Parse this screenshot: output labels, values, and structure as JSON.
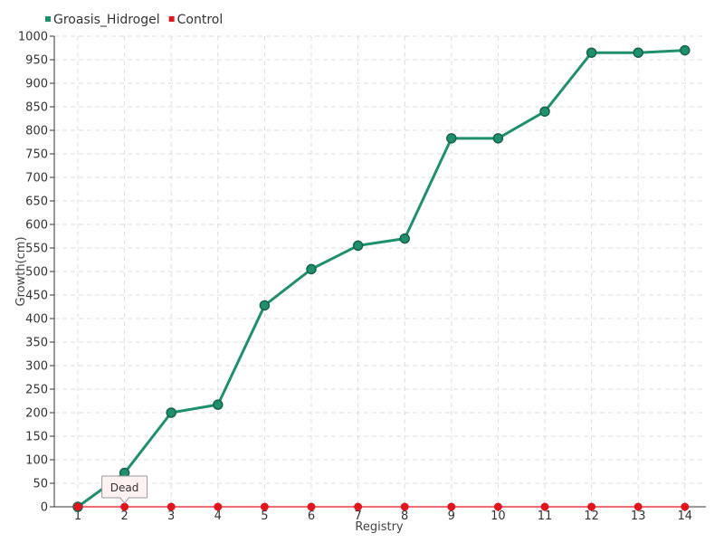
{
  "chart_data": {
    "type": "line",
    "title": "",
    "xlabel": "Registry",
    "ylabel": "Growth(cm)",
    "x": [
      1,
      2,
      3,
      4,
      5,
      6,
      7,
      8,
      9,
      10,
      11,
      12,
      13,
      14
    ],
    "x_tick_labels": [
      "1",
      "2",
      "3",
      "4",
      "5",
      "6",
      "7",
      "8",
      "9",
      "10",
      "11",
      "12",
      "13",
      "14"
    ],
    "ylim": [
      0,
      1000
    ],
    "y_tick_step": 50,
    "grid": true,
    "legend_position": "top-left",
    "series": [
      {
        "name": "Groasis_Hidrogel",
        "color": "#1f8f6d",
        "values": [
          0,
          72,
          200,
          217,
          428,
          505,
          555,
          570,
          783,
          783,
          840,
          965,
          965,
          970
        ]
      },
      {
        "name": "Control",
        "color": "#e0161f",
        "values": [
          0,
          0,
          0,
          0,
          0,
          0,
          0,
          0,
          0,
          0,
          0,
          0,
          0,
          0
        ]
      }
    ],
    "annotations": [
      {
        "text": "Dead",
        "series": "Control",
        "x": 2,
        "y": 0
      }
    ]
  }
}
